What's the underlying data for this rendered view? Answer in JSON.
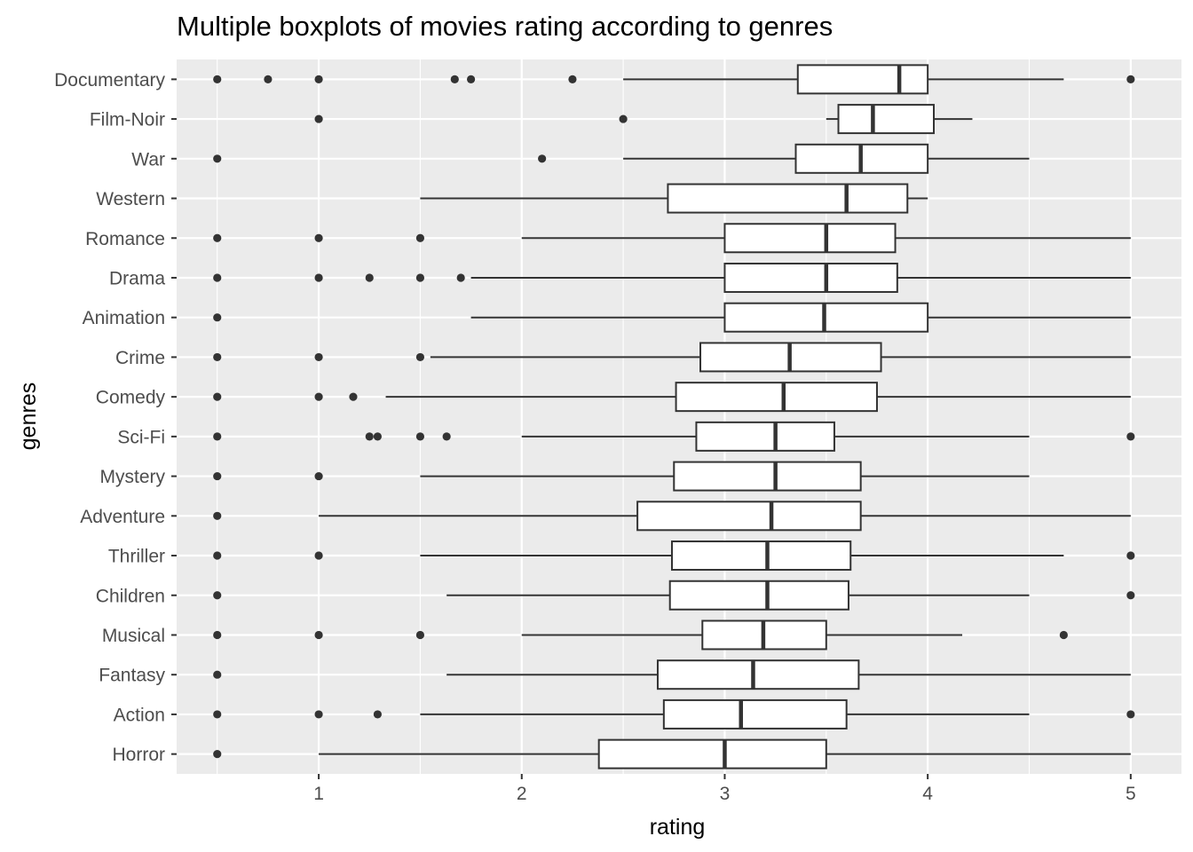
{
  "chart_data": {
    "type": "boxplot",
    "title": "Multiple boxplots of movies rating according to genres",
    "xlabel": "rating",
    "ylabel": "genres",
    "xlim": [
      0.3,
      5.25
    ],
    "x_ticks": [
      1,
      2,
      3,
      4,
      5
    ],
    "x_tick_labels": [
      "1",
      "2",
      "3",
      "4",
      "5"
    ],
    "grid": true,
    "panel_background": "#ebebeb",
    "grid_color": "#ffffff",
    "box_fill": "#ffffff",
    "line_color": "#333333",
    "categories": [
      "Documentary",
      "Film-Noir",
      "War",
      "Western",
      "Romance",
      "Drama",
      "Animation",
      "Crime",
      "Comedy",
      "Sci-Fi",
      "Mystery",
      "Adventure",
      "Thriller",
      "Children",
      "Musical",
      "Fantasy",
      "Action",
      "Horror"
    ],
    "boxes": [
      {
        "genre": "Documentary",
        "whisker_low": 2.5,
        "q1": 3.36,
        "median": 3.86,
        "q3": 4.0,
        "whisker_high": 4.67,
        "outliers": [
          0.5,
          0.75,
          1.0,
          1.67,
          1.75,
          2.25,
          5.0
        ]
      },
      {
        "genre": "Film-Noir",
        "whisker_low": 3.5,
        "q1": 3.56,
        "median": 3.73,
        "q3": 4.03,
        "whisker_high": 4.22,
        "outliers": [
          1.0,
          2.5
        ]
      },
      {
        "genre": "War",
        "whisker_low": 2.5,
        "q1": 3.35,
        "median": 3.67,
        "q3": 4.0,
        "whisker_high": 4.5,
        "outliers": [
          0.5,
          2.1
        ]
      },
      {
        "genre": "Western",
        "whisker_low": 1.5,
        "q1": 2.72,
        "median": 3.6,
        "q3": 3.9,
        "whisker_high": 4.0,
        "outliers": []
      },
      {
        "genre": "Romance",
        "whisker_low": 2.0,
        "q1": 3.0,
        "median": 3.5,
        "q3": 3.84,
        "whisker_high": 5.0,
        "outliers": [
          0.5,
          1.0,
          1.5
        ]
      },
      {
        "genre": "Drama",
        "whisker_low": 1.75,
        "q1": 3.0,
        "median": 3.5,
        "q3": 3.85,
        "whisker_high": 5.0,
        "outliers": [
          0.5,
          1.0,
          1.25,
          1.5,
          1.7
        ]
      },
      {
        "genre": "Animation",
        "whisker_low": 1.75,
        "q1": 3.0,
        "median": 3.49,
        "q3": 4.0,
        "whisker_high": 5.0,
        "outliers": [
          0.5
        ]
      },
      {
        "genre": "Crime",
        "whisker_low": 1.55,
        "q1": 2.88,
        "median": 3.32,
        "q3": 3.77,
        "whisker_high": 5.0,
        "outliers": [
          0.5,
          1.0,
          1.5
        ]
      },
      {
        "genre": "Comedy",
        "whisker_low": 1.33,
        "q1": 2.76,
        "median": 3.29,
        "q3": 3.75,
        "whisker_high": 5.0,
        "outliers": [
          0.5,
          1.0,
          1.17
        ]
      },
      {
        "genre": "Sci-Fi",
        "whisker_low": 2.0,
        "q1": 2.86,
        "median": 3.25,
        "q3": 3.54,
        "whisker_high": 4.5,
        "outliers": [
          0.5,
          1.25,
          1.29,
          1.5,
          1.63,
          5.0
        ]
      },
      {
        "genre": "Mystery",
        "whisker_low": 1.5,
        "q1": 2.75,
        "median": 3.25,
        "q3": 3.67,
        "whisker_high": 4.5,
        "outliers": [
          0.5,
          1.0
        ]
      },
      {
        "genre": "Adventure",
        "whisker_low": 1.0,
        "q1": 2.57,
        "median": 3.23,
        "q3": 3.67,
        "whisker_high": 5.0,
        "outliers": [
          0.5
        ]
      },
      {
        "genre": "Thriller",
        "whisker_low": 1.5,
        "q1": 2.74,
        "median": 3.21,
        "q3": 3.62,
        "whisker_high": 4.67,
        "outliers": [
          0.5,
          1.0,
          5.0
        ]
      },
      {
        "genre": "Children",
        "whisker_low": 1.63,
        "q1": 2.73,
        "median": 3.21,
        "q3": 3.61,
        "whisker_high": 4.5,
        "outliers": [
          0.5,
          5.0
        ]
      },
      {
        "genre": "Musical",
        "whisker_low": 2.0,
        "q1": 2.89,
        "median": 3.19,
        "q3": 3.5,
        "whisker_high": 4.17,
        "outliers": [
          0.5,
          1.0,
          1.5,
          4.67
        ]
      },
      {
        "genre": "Fantasy",
        "whisker_low": 1.63,
        "q1": 2.67,
        "median": 3.14,
        "q3": 3.66,
        "whisker_high": 5.0,
        "outliers": [
          0.5
        ]
      },
      {
        "genre": "Action",
        "whisker_low": 1.5,
        "q1": 2.7,
        "median": 3.08,
        "q3": 3.6,
        "whisker_high": 4.5,
        "outliers": [
          0.5,
          1.0,
          1.29,
          5.0
        ]
      },
      {
        "genre": "Horror",
        "whisker_low": 1.0,
        "q1": 2.38,
        "median": 3.0,
        "q3": 3.5,
        "whisker_high": 5.0,
        "outliers": [
          0.5
        ]
      }
    ]
  }
}
